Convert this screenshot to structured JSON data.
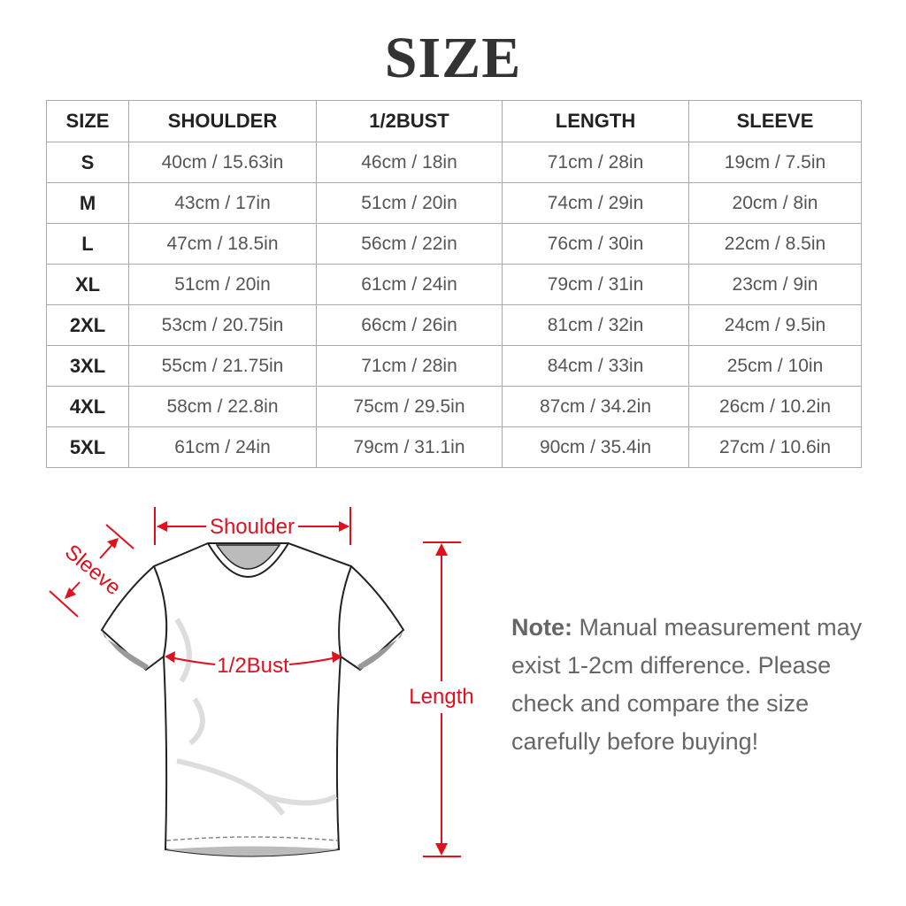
{
  "title": "SIZE",
  "table": {
    "headers": [
      "SIZE",
      "SHOULDER",
      "1/2BUST",
      "LENGTH",
      "SLEEVE"
    ],
    "rows": [
      [
        "S",
        "40cm / 15.63in",
        "46cm / 18in",
        "71cm / 28in",
        "19cm / 7.5in"
      ],
      [
        "M",
        "43cm / 17in",
        "51cm / 20in",
        "74cm / 29in",
        "20cm / 8in"
      ],
      [
        "L",
        "47cm / 18.5in",
        "56cm / 22in",
        "76cm / 30in",
        "22cm / 8.5in"
      ],
      [
        "XL",
        "51cm / 20in",
        "61cm / 24in",
        "79cm / 31in",
        "23cm / 9in"
      ],
      [
        "2XL",
        "53cm / 20.75in",
        "66cm / 26in",
        "81cm / 32in",
        "24cm / 9.5in"
      ],
      [
        "3XL",
        "55cm / 21.75in",
        "71cm / 28in",
        "84cm / 33in",
        "25cm / 10in"
      ],
      [
        "4XL",
        "58cm / 22.8in",
        "75cm / 29.5in",
        "87cm / 34.2in",
        "26cm / 10.2in"
      ],
      [
        "5XL",
        "61cm / 24in",
        "79cm / 31.1in",
        "90cm / 35.4in",
        "27cm / 10.6in"
      ]
    ]
  },
  "diagram": {
    "shoulder_label": "Shoulder",
    "sleeve_label": "Sleeve",
    "bust_label": "1/2Bust",
    "length_label": "Length",
    "accent_color": "#e0101e"
  },
  "note": {
    "label": "Note:",
    "text": "Manual measurement may exist 1-2cm difference. Please check and compare the size carefully before buying!"
  }
}
